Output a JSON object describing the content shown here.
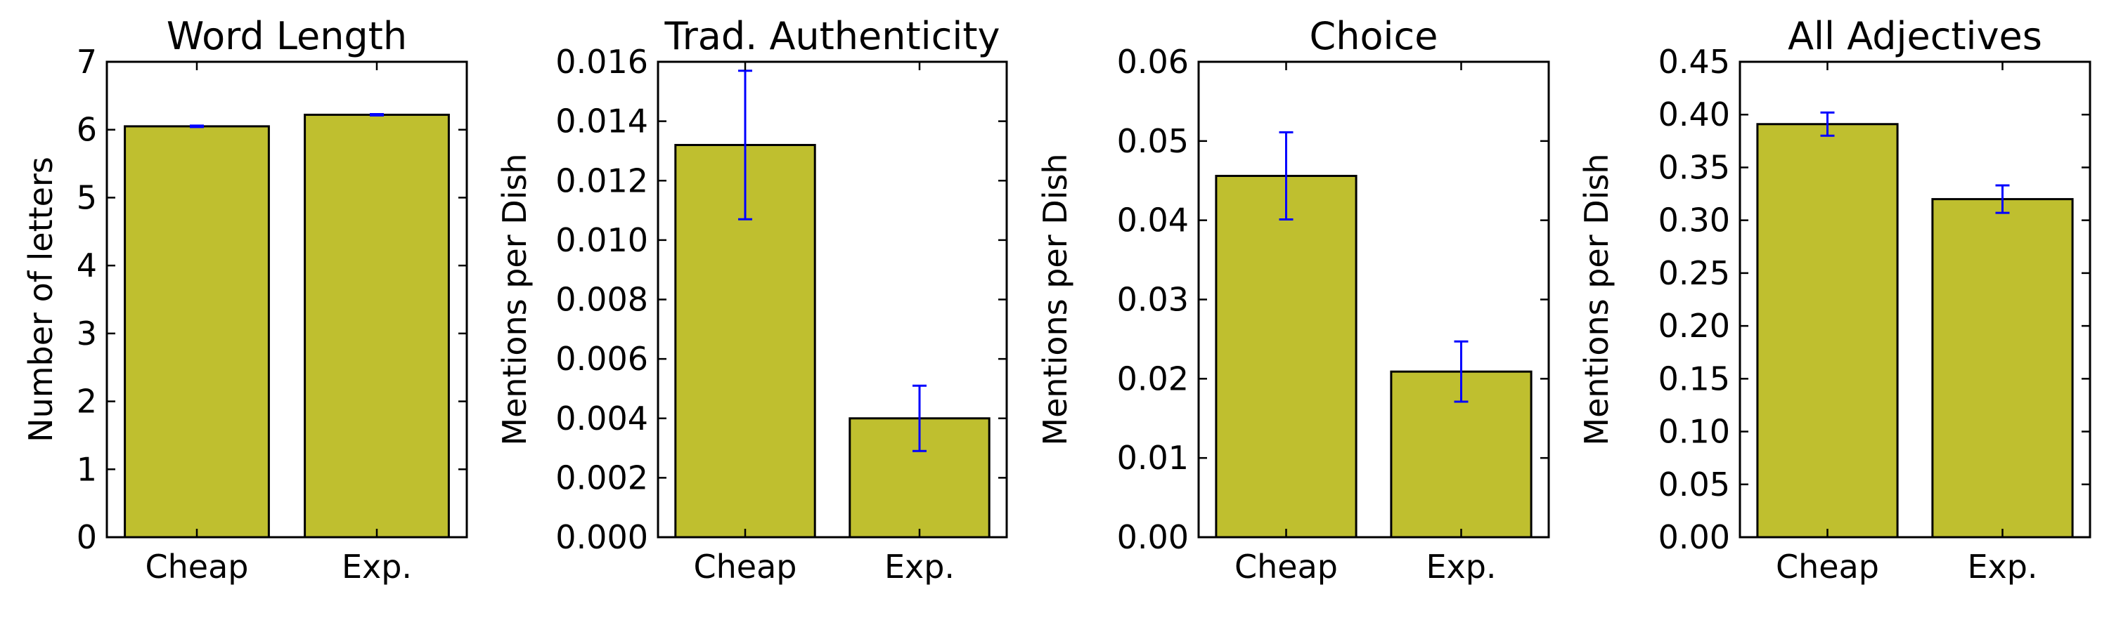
{
  "style": {
    "bar_color": "#bfbf2f",
    "error_color": "#0000ff"
  },
  "chart_data": [
    {
      "type": "bar",
      "title": "Word Length",
      "ylabel": "Number of letters",
      "categories": [
        "Cheap",
        "Exp."
      ],
      "values": [
        6.05,
        6.22
      ],
      "errors": [
        0.01,
        0.01
      ],
      "ylim": [
        0,
        7
      ],
      "yticks": [
        "0",
        "1",
        "2",
        "3",
        "4",
        "5",
        "6",
        "7"
      ]
    },
    {
      "type": "bar",
      "title": "Trad. Authenticity",
      "ylabel": "Mentions per Dish",
      "categories": [
        "Cheap",
        "Exp."
      ],
      "values": [
        0.0132,
        0.004
      ],
      "errors": [
        0.0025,
        0.0011
      ],
      "ylim": [
        0,
        0.016
      ],
      "yticks": [
        "0.000",
        "0.002",
        "0.004",
        "0.006",
        "0.008",
        "0.010",
        "0.012",
        "0.014",
        "0.016"
      ]
    },
    {
      "type": "bar",
      "title": "Choice",
      "ylabel": "Mentions per Dish",
      "categories": [
        "Cheap",
        "Exp."
      ],
      "values": [
        0.0456,
        0.0209
      ],
      "errors": [
        0.0055,
        0.0038
      ],
      "ylim": [
        0,
        0.06
      ],
      "yticks": [
        "0.00",
        "0.01",
        "0.02",
        "0.03",
        "0.04",
        "0.05",
        "0.06"
      ]
    },
    {
      "type": "bar",
      "title": "All Adjectives",
      "ylabel": "Mentions per Dish",
      "categories": [
        "Cheap",
        "Exp."
      ],
      "values": [
        0.391,
        0.32
      ],
      "errors": [
        0.011,
        0.013
      ],
      "ylim": [
        0,
        0.45
      ],
      "yticks": [
        "0.00",
        "0.05",
        "0.10",
        "0.15",
        "0.20",
        "0.25",
        "0.30",
        "0.35",
        "0.40",
        "0.45"
      ]
    }
  ]
}
